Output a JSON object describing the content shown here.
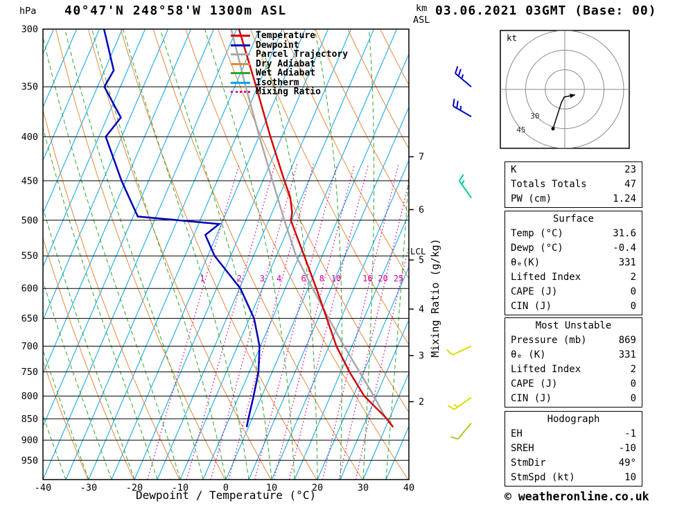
{
  "header": {
    "title": "40°47'N 248°58'W 1300m ASL",
    "datetime": "03.06.2021 03GMT (Base: 00)"
  },
  "labels": {
    "pressure_unit": "hPa",
    "km": "km",
    "asl": "ASL",
    "xlabel": "Dewpoint / Temperature (°C)",
    "right_axis_label": "Mixing Ratio (g/kg)",
    "lcl": "LCL",
    "hodograph_unit": "kt"
  },
  "footer": {
    "copyright": "© weatheronline.co.uk"
  },
  "colors": {
    "temperature": "#d80000",
    "dewpoint": "#0000b8",
    "parcel": "#a8a8a8",
    "dry_adiabat": "#e6883c",
    "wet_adiabat": "#2ca62c",
    "isotherm": "#00a2e8",
    "mixing_ratio": "#d4009e",
    "grid": "#000000",
    "hodo_grid": "#888888"
  },
  "legend": [
    {
      "label": "Temperature",
      "color": "#d80000",
      "dash": "solid"
    },
    {
      "label": "Dewpoint",
      "color": "#0000b8",
      "dash": "solid"
    },
    {
      "label": "Parcel Trajectory",
      "color": "#a8a8a8",
      "dash": "solid"
    },
    {
      "label": "Dry Adiabat",
      "color": "#e6883c",
      "dash": "solid"
    },
    {
      "label": "Wet Adiabat",
      "color": "#2ca62c",
      "dash": "solid"
    },
    {
      "label": "Isotherm",
      "color": "#00a2e8",
      "dash": "solid"
    },
    {
      "label": "Mixing Ratio",
      "color": "#d4009e",
      "dash": "dotted"
    }
  ],
  "chart_data": {
    "type": "skew-t-log-p",
    "pressure_ticks": [
      300,
      350,
      400,
      450,
      500,
      550,
      600,
      650,
      700,
      750,
      800,
      850,
      900,
      950
    ],
    "pressure_range": [
      300,
      1000
    ],
    "temp_ticks": [
      -40,
      -30,
      -20,
      -10,
      0,
      10,
      20,
      30,
      40
    ],
    "temp_range": [
      -40,
      40
    ],
    "isotherm_c": {
      "min": -80,
      "max": 40,
      "step": 5
    },
    "dry_adiabat_theta_k": {
      "min": 233,
      "max": 393,
      "step": 10
    },
    "wet_adiabat_start_c": {
      "min": -70,
      "max": 40,
      "step": 5
    },
    "mixing_ratio_lines": [
      1,
      2,
      3,
      4,
      6,
      8,
      10,
      16,
      20,
      25
    ],
    "km_ticks": [
      {
        "km": 7,
        "p": 422
      },
      {
        "km": 6,
        "p": 486
      },
      {
        "km": 5,
        "p": 556
      },
      {
        "km": 4,
        "p": 634
      },
      {
        "km": 3,
        "p": 718
      },
      {
        "km": 2,
        "p": 812
      }
    ],
    "lcl_pressure": 550,
    "temperature_profile": [
      [
        869,
        31.6
      ],
      [
        850,
        29.5
      ],
      [
        800,
        22.4
      ],
      [
        750,
        16.9
      ],
      [
        700,
        11.6
      ],
      [
        650,
        6.9
      ],
      [
        600,
        1.8
      ],
      [
        550,
        -3.9
      ],
      [
        500,
        -10.2
      ],
      [
        490,
        -10.6
      ],
      [
        470,
        -12.5
      ],
      [
        450,
        -15.3
      ],
      [
        400,
        -22.5
      ],
      [
        350,
        -30.3
      ],
      [
        300,
        -39.5
      ]
    ],
    "dewpoint_profile": [
      [
        869,
        -0.4
      ],
      [
        850,
        -0.8
      ],
      [
        800,
        -1.8
      ],
      [
        750,
        -3.0
      ],
      [
        700,
        -5.2
      ],
      [
        650,
        -9.0
      ],
      [
        600,
        -14.8
      ],
      [
        550,
        -23.5
      ],
      [
        520,
        -27.5
      ],
      [
        505,
        -25.5
      ],
      [
        495,
        -44.0
      ],
      [
        450,
        -50.9
      ],
      [
        400,
        -58.5
      ],
      [
        380,
        -57.0
      ],
      [
        350,
        -63.5
      ],
      [
        335,
        -63.0
      ],
      [
        300,
        -69.0
      ]
    ],
    "parcel_profile": [
      [
        869,
        31.6
      ],
      [
        850,
        29.3
      ],
      [
        800,
        24.5
      ],
      [
        750,
        19.1
      ],
      [
        700,
        13.3
      ],
      [
        650,
        7.3
      ],
      [
        600,
        1.0
      ],
      [
        550,
        -5.7
      ],
      [
        500,
        -11.6
      ],
      [
        450,
        -17.9
      ],
      [
        400,
        -24.9
      ],
      [
        350,
        -32.6
      ],
      [
        300,
        -41.2
      ]
    ],
    "wind_barbs": [
      {
        "p": 350,
        "dir": 310,
        "speed": 25,
        "color": "#0000cc"
      },
      {
        "p": 379,
        "dir": 300,
        "speed": 25,
        "color": "#0000cc"
      },
      {
        "p": 471,
        "dir": 325,
        "speed": 15,
        "color": "#00cc99"
      },
      {
        "p": 700,
        "dir": 245,
        "speed": 10,
        "color": "#dddd00"
      },
      {
        "p": 803,
        "dir": 235,
        "speed": 15,
        "color": "#dddd00"
      },
      {
        "p": 860,
        "dir": 220,
        "speed": 10,
        "color": "#aacc22"
      }
    ],
    "hodograph": {
      "rings_kt": [
        15,
        30,
        45
      ],
      "ring_labels": [
        {
          "text": "30",
          "kt": 30
        },
        {
          "text": "45",
          "kt": 45
        }
      ],
      "trace_kt": [
        [
          -9,
          -30
        ],
        [
          -2.6,
          -10
        ],
        [
          -0.5,
          -5.8
        ],
        [
          7.9,
          -4.2
        ]
      ]
    }
  },
  "panel": {
    "indices": {
      "rows": [
        {
          "label": "K",
          "value": "23"
        },
        {
          "label": "Totals Totals",
          "value": "47"
        },
        {
          "label": "PW (cm)",
          "value": "1.24"
        }
      ]
    },
    "surface": {
      "header": "Surface",
      "rows": [
        {
          "label": "Temp (°C)",
          "value": "31.6"
        },
        {
          "label": "Dewp (°C)",
          "value": "-0.4"
        },
        {
          "label": "θₑ(K)",
          "value": "331"
        },
        {
          "label": "Lifted Index",
          "value": "2"
        },
        {
          "label": "CAPE (J)",
          "value": "0"
        },
        {
          "label": "CIN (J)",
          "value": "0"
        }
      ]
    },
    "most_unstable": {
      "header": "Most Unstable",
      "rows": [
        {
          "label": "Pressure (mb)",
          "value": "869"
        },
        {
          "label": "θₑ (K)",
          "value": "331"
        },
        {
          "label": "Lifted Index",
          "value": "2"
        },
        {
          "label": "CAPE (J)",
          "value": "0"
        },
        {
          "label": "CIN (J)",
          "value": "0"
        }
      ]
    },
    "hodograph": {
      "header": "Hodograph",
      "rows": [
        {
          "label": "EH",
          "value": "-1"
        },
        {
          "label": "SREH",
          "value": "-10"
        },
        {
          "label": "StmDir",
          "value": "49°"
        },
        {
          "label": "StmSpd (kt)",
          "value": "10"
        }
      ]
    }
  }
}
